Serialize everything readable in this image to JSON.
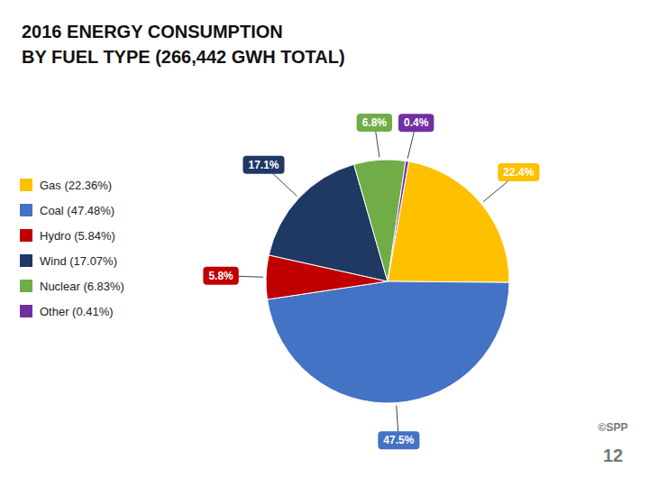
{
  "chart_data": {
    "type": "pie",
    "title": "2016 ENERGY CONSUMPTION",
    "subtitle": "BY FUEL TYPE (266,442 GWH TOTAL)",
    "categories": [
      "Gas (22.36%)",
      "Coal (47.48%)",
      "Hydro (5.84%)",
      "Wind (17.07%)",
      "Nuclear (6.83%)",
      "Other (0.41%)"
    ],
    "values": [
      22.36,
      47.48,
      5.84,
      17.07,
      6.83,
      0.41
    ],
    "value_labels": [
      "22.4%",
      "47.5%",
      "5.8%",
      "17.1%",
      "6.8%",
      "0.4%"
    ],
    "colors": [
      "#FFC000",
      "#4472C4",
      "#C00000",
      "#1F3864",
      "#70AD47",
      "#7030A0"
    ],
    "data_labels": true,
    "legend": "left",
    "annotations": [
      "©SPP",
      "12"
    ]
  }
}
